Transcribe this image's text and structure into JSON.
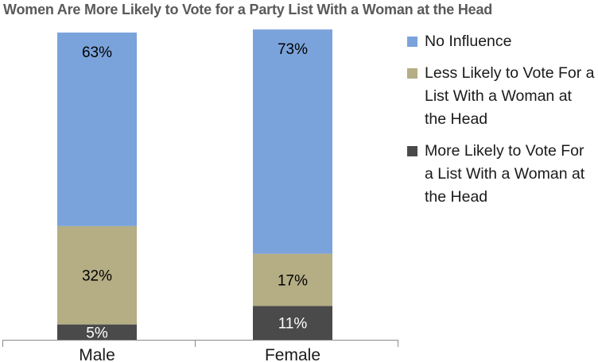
{
  "chart_data": {
    "type": "bar",
    "stacked": true,
    "title": "Women Are More Likely to Vote for a Party List With a Woman at the Head",
    "categories": [
      "Male",
      "Female"
    ],
    "series": [
      {
        "name": "More Likely to Vote For a List With a Woman at the Head",
        "color": "#4a4a4a",
        "values": [
          5,
          11
        ],
        "labels": [
          "5%",
          "11%"
        ],
        "label_color": "#ffffff"
      },
      {
        "name": "Less Likely to Vote For a List With a Woman at the Head",
        "color": "#b5ad84",
        "values": [
          32,
          17
        ],
        "labels": [
          "32%",
          "17%"
        ],
        "label_color": "#000000"
      },
      {
        "name": "No Influence",
        "color": "#7ba3db",
        "values": [
          63,
          73
        ],
        "labels": [
          "63%",
          "73%"
        ],
        "label_color": "#000000"
      }
    ],
    "ylim": [
      0,
      100
    ],
    "legend_position": "right",
    "legend_order": [
      2,
      1,
      0
    ],
    "grid": false
  }
}
